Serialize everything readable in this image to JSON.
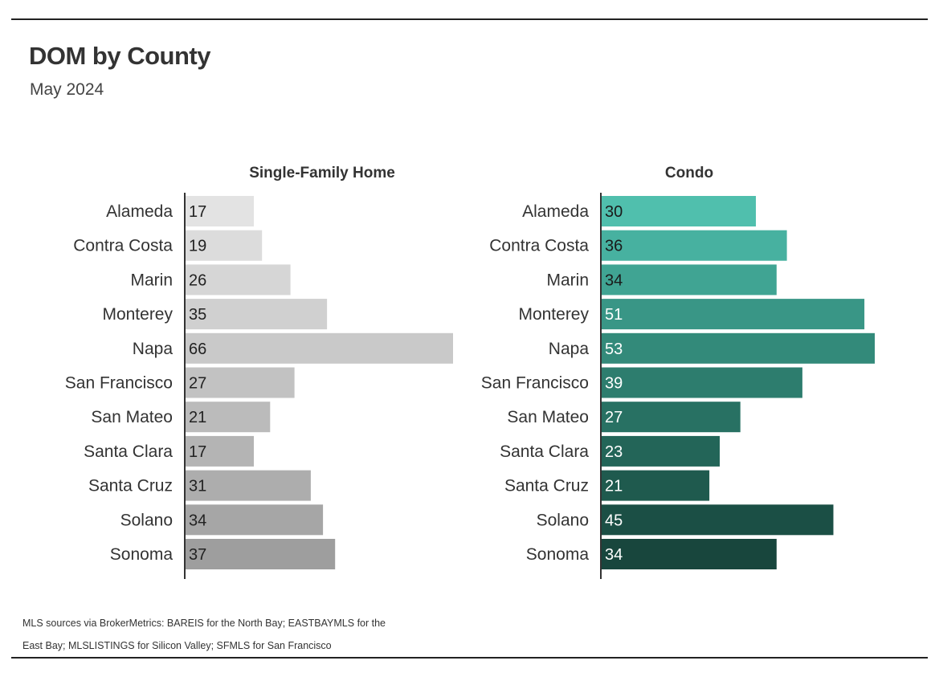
{
  "title": "DOM by County",
  "subtitle": "May 2024",
  "source": "MLS sources via BrokerMetrics: BAREIS for the North Bay; EASTBAYMLS for the East Bay; MLSLISTINGS for Silicon Valley; SFMLS for San Francisco",
  "chart_data": [
    {
      "type": "bar",
      "orientation": "horizontal",
      "title": "Single-Family Home",
      "categories": [
        "Alameda",
        "Contra Costa",
        "Marin",
        "Monterey",
        "Napa",
        "San Francisco",
        "San Mateo",
        "Santa Clara",
        "Santa Cruz",
        "Solano",
        "Sonoma"
      ],
      "values": [
        17,
        19,
        26,
        35,
        66,
        27,
        21,
        17,
        31,
        34,
        37
      ],
      "colors": [
        "#e3e3e3",
        "#dcdcdc",
        "#d6d6d6",
        "#d0d0d0",
        "#c9c9c9",
        "#c2c2c2",
        "#bbbbbb",
        "#b4b4b4",
        "#adadad",
        "#a6a6a6",
        "#9e9e9e"
      ],
      "label_colors": [
        "#222222",
        "#222222",
        "#222222",
        "#222222",
        "#222222",
        "#222222",
        "#222222",
        "#222222",
        "#222222",
        "#222222",
        "#222222"
      ],
      "xlim": [
        0,
        66
      ]
    },
    {
      "type": "bar",
      "orientation": "horizontal",
      "title": "Condo",
      "categories": [
        "Alameda",
        "Contra Costa",
        "Marin",
        "Monterey",
        "Napa",
        "San Francisco",
        "San Mateo",
        "Santa Clara",
        "Santa Cruz",
        "Solano",
        "Sonoma"
      ],
      "values": [
        30,
        36,
        34,
        51,
        53,
        39,
        27,
        23,
        21,
        45,
        34
      ],
      "colors": [
        "#50bfad",
        "#47b1a0",
        "#40a493",
        "#399686",
        "#338a7a",
        "#2d7d6e",
        "#287163",
        "#236558",
        "#1f5a4e",
        "#1b4f45",
        "#18463d"
      ],
      "label_colors": [
        "#1a1a1a",
        "#1a1a1a",
        "#1a1a1a",
        "#ffffff",
        "#ffffff",
        "#ffffff",
        "#ffffff",
        "#ffffff",
        "#ffffff",
        "#ffffff",
        "#ffffff"
      ],
      "xlim": [
        0,
        53
      ]
    }
  ]
}
